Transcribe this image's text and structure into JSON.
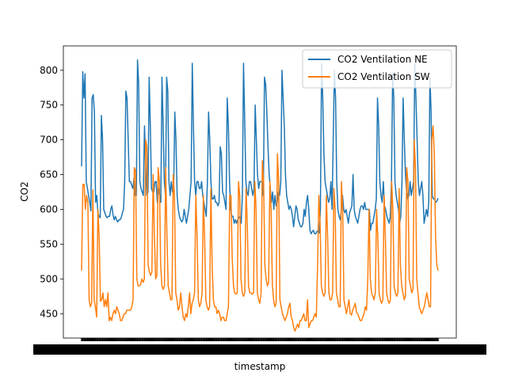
{
  "chart_data": {
    "type": "line",
    "xlabel": "timestamp",
    "ylabel": "CO2",
    "ylim": [
      415,
      835
    ],
    "yticks": [
      450,
      500,
      550,
      600,
      650,
      700,
      750,
      800
    ],
    "legend_position": "upper-right",
    "grid": false,
    "series": [
      {
        "name": "CO2 Ventilation NE",
        "color": "#1f77b4",
        "values": [
          662,
          798,
          760,
          795,
          640,
          630,
          620,
          610,
          598,
          760,
          765,
          740,
          610,
          620,
          595,
          590,
          588,
          735,
          700,
          600,
          595,
          590,
          588,
          590,
          590,
          600,
          605,
          592,
          585,
          590,
          585,
          582,
          585,
          585,
          588,
          595,
          600,
          640,
          770,
          760,
          700,
          640,
          640,
          635,
          630,
          645,
          620,
          620,
          815,
          780,
          640,
          630,
          625,
          620,
          720,
          660,
          620,
          625,
          790,
          720,
          630,
          625,
          625,
          640,
          640,
          610,
          630,
          620,
          610,
          790,
          720,
          640,
          620,
          790,
          770,
          640,
          620,
          640,
          625,
          625,
          740,
          700,
          620,
          600,
          590,
          585,
          582,
          585,
          600,
          590,
          580,
          590,
          600,
          620,
          640,
          810,
          720,
          640,
          620,
          640,
          640,
          630,
          630,
          640,
          620,
          610,
          600,
          590,
          640,
          740,
          700,
          640,
          615,
          615,
          620,
          610,
          610,
          605,
          610,
          690,
          680,
          625,
          620,
          610,
          600,
          760,
          720,
          640,
          600,
          590,
          590,
          580,
          585,
          580,
          585,
          588,
          590,
          580,
          620,
          810,
          730,
          640,
          625,
          620,
          640,
          640,
          630,
          620,
          630,
          750,
          700,
          650,
          630,
          640,
          640,
          640,
          620,
          790,
          780,
          740,
          690,
          650,
          630,
          610,
          625,
          600,
          620,
          605,
          610,
          625,
          620,
          640,
          800,
          760,
          720,
          650,
          620,
          610,
          600,
          605,
          600,
          590,
          575,
          590,
          605,
          600,
          585,
          580,
          575,
          575,
          580,
          600,
          590,
          610,
          620,
          600,
          570,
          565,
          568,
          570,
          565,
          565,
          568,
          570,
          566,
          600,
          810,
          760,
          680,
          640,
          630,
          620,
          610,
          615,
          640,
          600,
          700,
          800,
          760,
          640,
          600,
          590,
          585,
          600,
          620,
          600,
          595,
          600,
          590,
          580,
          595,
          600,
          605,
          650,
          600,
          590,
          585,
          580,
          590,
          600,
          605,
          605,
          600,
          610,
          600,
          600,
          600,
          600,
          570,
          580,
          580,
          590,
          600,
          615,
          760,
          720,
          640,
          620,
          610,
          640,
          605,
          600,
          590,
          585,
          580,
          590,
          640,
          795,
          760,
          640,
          620,
          610,
          600,
          580,
          590,
          640,
          760,
          700,
          650,
          625,
          615,
          620,
          640,
          620,
          630,
          640,
          810,
          760,
          700,
          640,
          620,
          630,
          640,
          620,
          580,
          590,
          600,
          590,
          610,
          790,
          740,
          620,
          615,
          615,
          610,
          612,
          616
        ]
      },
      {
        "name": "CO2 Ventilation SW",
        "color": "#ff7f0e",
        "values": [
          512,
          636,
          636,
          600,
          620,
          610,
          470,
          460,
          465,
          628,
          470,
          460,
          445,
          600,
          560,
          468,
          470,
          480,
          460,
          470,
          460,
          480,
          440,
          445,
          440,
          450,
          455,
          450,
          460,
          455,
          450,
          440,
          440,
          445,
          450,
          450,
          455,
          455,
          455,
          455,
          460,
          470,
          660,
          655,
          500,
          490,
          490,
          492,
          500,
          495,
          500,
          700,
          690,
          520,
          510,
          505,
          510,
          650,
          560,
          500,
          505,
          660,
          640,
          520,
          490,
          485,
          490,
          660,
          560,
          490,
          480,
          470,
          470,
          650,
          620,
          480,
          470,
          455,
          460,
          480,
          460,
          445,
          440,
          450,
          445,
          460,
          480,
          450,
          465,
          470,
          480,
          620,
          560,
          470,
          460,
          465,
          480,
          620,
          560,
          470,
          460,
          455,
          460,
          630,
          520,
          470,
          460,
          460,
          450,
          455,
          450,
          440,
          445,
          445,
          440,
          440,
          450,
          460,
          620,
          620,
          530,
          490,
          480,
          478,
          480,
          640,
          620,
          500,
          480,
          475,
          480,
          630,
          580,
          490,
          480,
          480,
          478,
          480,
          640,
          600,
          480,
          470,
          465,
          480,
          670,
          640,
          520,
          500,
          490,
          495,
          640,
          600,
          490,
          470,
          460,
          465,
          680,
          640,
          470,
          460,
          450,
          445,
          440,
          445,
          450,
          460,
          465,
          445,
          440,
          430,
          425,
          430,
          435,
          430,
          440,
          440,
          445,
          450,
          440,
          440,
          470,
          430,
          435,
          440,
          440,
          445,
          450,
          445,
          520,
          620,
          580,
          490,
          480,
          475,
          480,
          620,
          560,
          480,
          470,
          470,
          480,
          630,
          600,
          480,
          470,
          460,
          460,
          640,
          600,
          470,
          460,
          450,
          460,
          470,
          450,
          448,
          455,
          460,
          465,
          452,
          450,
          445,
          440,
          440,
          445,
          450,
          460,
          455,
          500,
          600,
          500,
          480,
          475,
          470,
          480,
          600,
          560,
          480,
          470,
          465,
          470,
          620,
          560,
          480,
          470,
          465,
          470,
          640,
          600,
          490,
          480,
          475,
          480,
          630,
          520,
          490,
          480,
          470,
          475,
          660,
          640,
          500,
          490,
          480,
          485,
          700,
          660,
          500,
          480,
          460,
          455,
          450,
          455,
          460,
          470,
          480,
          470,
          460,
          460,
          700,
          720,
          680,
          560,
          520,
          512
        ]
      }
    ]
  }
}
